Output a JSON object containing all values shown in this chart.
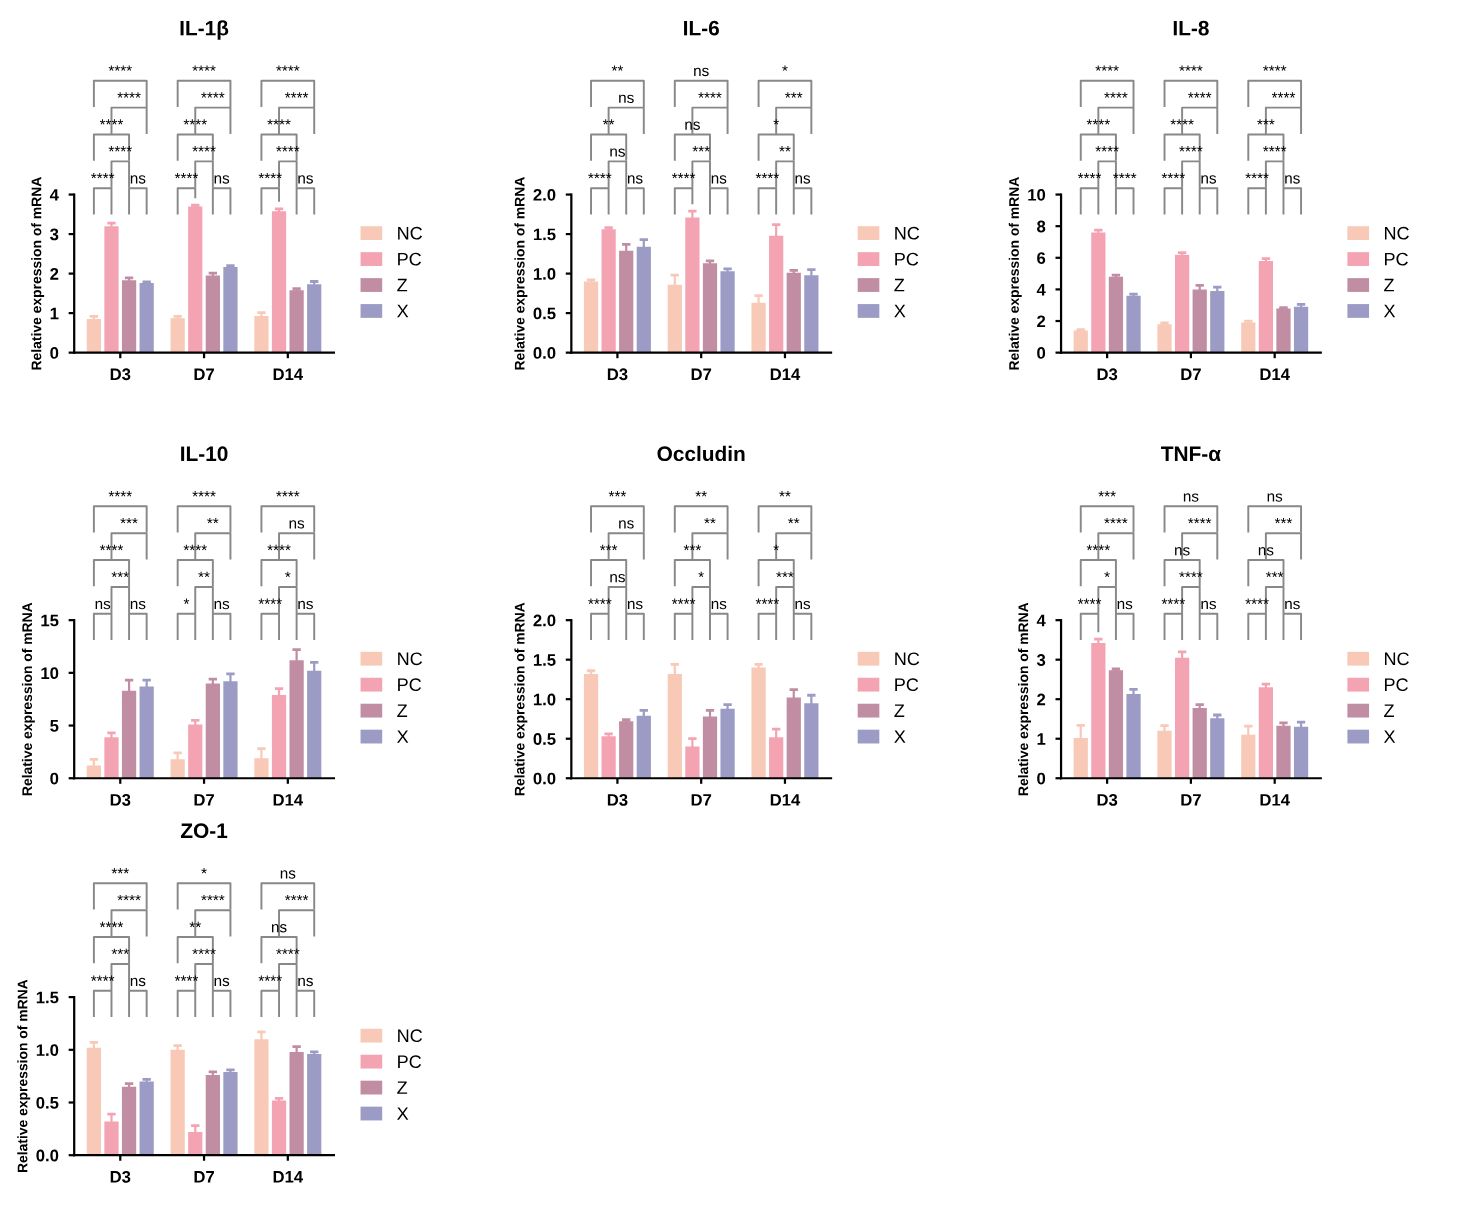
{
  "chart_data": [
    {
      "type": "bar",
      "title": "IL-1β",
      "ylabel": "Relative expression of mRNA",
      "categories": [
        "D3",
        "D7",
        "D14"
      ],
      "ylim": [
        0,
        4
      ],
      "yticks": [
        0,
        1,
        2,
        3,
        4
      ],
      "legend": "right",
      "series": [
        {
          "name": "NC",
          "color": "#f7c9b6",
          "values": [
            0.85,
            0.87,
            0.93
          ],
          "errors": [
            0.07,
            0.05,
            0.08
          ]
        },
        {
          "name": "PC",
          "color": "#f4a3b3",
          "values": [
            3.2,
            3.7,
            3.58
          ],
          "errors": [
            0.08,
            0.03,
            0.06
          ]
        },
        {
          "name": "Z",
          "color": "#c08da3",
          "values": [
            1.83,
            1.95,
            1.58
          ],
          "errors": [
            0.06,
            0.06,
            0.04
          ]
        },
        {
          "name": "X",
          "color": "#9c9bc5",
          "values": [
            1.76,
            2.17,
            1.73
          ],
          "errors": [
            0.03,
            0.03,
            0.07
          ]
        }
      ],
      "annotations": [
        "****",
        "ns",
        "****",
        "****",
        "****",
        "****",
        "****",
        "ns",
        "****",
        "****",
        "****",
        "****",
        "****",
        "ns",
        "****",
        "****",
        "****",
        "****"
      ]
    },
    {
      "type": "bar",
      "title": "IL-6",
      "ylabel": "Relative expression of mRNA",
      "categories": [
        "D3",
        "D7",
        "D14"
      ],
      "ylim": [
        0,
        2
      ],
      "yticks": [
        {
          "value": 0,
          "label": "0.0"
        },
        0.5,
        {
          "value": 1,
          "label": "1.0"
        },
        1.5,
        {
          "value": 2,
          "label": "2.0"
        }
      ],
      "legend": "right",
      "series": [
        {
          "name": "NC",
          "color": "#f7c9b6",
          "values": [
            0.9,
            0.86,
            0.63
          ],
          "errors": [
            0.02,
            0.12,
            0.09
          ]
        },
        {
          "name": "PC",
          "color": "#f4a3b3",
          "values": [
            1.56,
            1.71,
            1.48
          ],
          "errors": [
            0.02,
            0.08,
            0.14
          ]
        },
        {
          "name": "Z",
          "color": "#c08da3",
          "values": [
            1.29,
            1.13,
            1.01
          ],
          "errors": [
            0.08,
            0.03,
            0.03
          ]
        },
        {
          "name": "X",
          "color": "#9c9bc5",
          "values": [
            1.34,
            1.03,
            0.98
          ],
          "errors": [
            0.09,
            0.03,
            0.07
          ]
        }
      ],
      "annotations": [
        "****",
        "ns",
        "ns",
        "**",
        "ns",
        "**",
        "****",
        "ns",
        "***",
        "ns",
        "****",
        "ns",
        "****",
        "ns",
        "**",
        "*",
        "***",
        "*"
      ]
    },
    {
      "type": "bar",
      "title": "IL-8",
      "ylabel": "Relative expression of mRNA",
      "categories": [
        "D3",
        "D7",
        "D14"
      ],
      "ylim": [
        0,
        10
      ],
      "yticks": [
        0,
        2,
        4,
        6,
        8,
        10
      ],
      "legend": "right",
      "series": [
        {
          "name": "NC",
          "color": "#f7c9b6",
          "values": [
            1.4,
            1.8,
            1.9
          ],
          "errors": [
            0.05,
            0.08,
            0.1
          ]
        },
        {
          "name": "PC",
          "color": "#f4a3b3",
          "values": [
            7.6,
            6.2,
            5.8
          ],
          "errors": [
            0.15,
            0.12,
            0.15
          ]
        },
        {
          "name": "Z",
          "color": "#c08da3",
          "values": [
            4.8,
            4.0,
            2.8
          ],
          "errors": [
            0.1,
            0.25,
            0.05
          ]
        },
        {
          "name": "X",
          "color": "#9c9bc5",
          "values": [
            3.6,
            3.9,
            2.9
          ],
          "errors": [
            0.1,
            0.25,
            0.15
          ]
        }
      ],
      "annotations": [
        "****",
        "****",
        "****",
        "****",
        "****",
        "****",
        "****",
        "ns",
        "****",
        "****",
        "****",
        "****",
        "****",
        "ns",
        "****",
        "***",
        "****",
        "****"
      ]
    },
    {
      "type": "bar",
      "title": "IL-10",
      "ylabel": "Relative expression of mRNA",
      "categories": [
        "D3",
        "D7",
        "D14"
      ],
      "ylim": [
        0,
        15
      ],
      "yticks": [
        0,
        5,
        10,
        15
      ],
      "legend": "right",
      "series": [
        {
          "name": "NC",
          "color": "#f7c9b6",
          "values": [
            1.2,
            1.8,
            1.9
          ],
          "errors": [
            0.6,
            0.6,
            0.9
          ]
        },
        {
          "name": "PC",
          "color": "#f4a3b3",
          "values": [
            3.9,
            5.1,
            7.9
          ],
          "errors": [
            0.4,
            0.4,
            0.6
          ]
        },
        {
          "name": "Z",
          "color": "#c08da3",
          "values": [
            8.3,
            9.0,
            11.2
          ],
          "errors": [
            1.0,
            0.4,
            1.0
          ]
        },
        {
          "name": "X",
          "color": "#9c9bc5",
          "values": [
            8.7,
            9.2,
            10.2
          ],
          "errors": [
            0.6,
            0.7,
            0.8
          ]
        }
      ],
      "annotations": [
        "ns",
        "ns",
        "***",
        "****",
        "***",
        "****",
        "*",
        "ns",
        "**",
        "****",
        "**",
        "****",
        "****",
        "ns",
        "*",
        "****",
        "ns",
        "****"
      ]
    },
    {
      "type": "bar",
      "title": "Occludin",
      "ylabel": "Relative expression of mRNA",
      "categories": [
        "D3",
        "D7",
        "D14"
      ],
      "ylim": [
        0,
        2
      ],
      "yticks": [
        {
          "value": 0,
          "label": "0.0"
        },
        0.5,
        {
          "value": 1,
          "label": "1.0"
        },
        1.5,
        {
          "value": 2,
          "label": "2.0"
        }
      ],
      "legend": "right",
      "series": [
        {
          "name": "NC",
          "color": "#f7c9b6",
          "values": [
            1.32,
            1.32,
            1.4
          ],
          "errors": [
            0.04,
            0.12,
            0.04
          ]
        },
        {
          "name": "PC",
          "color": "#f4a3b3",
          "values": [
            0.53,
            0.4,
            0.52
          ],
          "errors": [
            0.03,
            0.1,
            0.1
          ]
        },
        {
          "name": "Z",
          "color": "#c08da3",
          "values": [
            0.72,
            0.78,
            1.02
          ],
          "errors": [
            0.02,
            0.08,
            0.1
          ]
        },
        {
          "name": "X",
          "color": "#9c9bc5",
          "values": [
            0.79,
            0.88,
            0.95
          ],
          "errors": [
            0.07,
            0.05,
            0.1
          ]
        }
      ],
      "annotations": [
        "****",
        "ns",
        "ns",
        "***",
        "ns",
        "***",
        "****",
        "ns",
        "*",
        "***",
        "**",
        "**",
        "****",
        "ns",
        "***",
        "*",
        "**",
        "**"
      ]
    },
    {
      "type": "bar",
      "title": "TNF-α",
      "ylabel": "Relative expression of mRNA",
      "categories": [
        "D3",
        "D7",
        "D14"
      ],
      "ylim": [
        0,
        4
      ],
      "yticks": [
        0,
        1,
        2,
        3,
        4
      ],
      "legend": "right",
      "series": [
        {
          "name": "NC",
          "color": "#f7c9b6",
          "values": [
            1.02,
            1.2,
            1.1
          ],
          "errors": [
            0.32,
            0.13,
            0.22
          ]
        },
        {
          "name": "PC",
          "color": "#f4a3b3",
          "values": [
            3.42,
            3.05,
            2.3
          ],
          "errors": [
            0.1,
            0.15,
            0.08
          ]
        },
        {
          "name": "Z",
          "color": "#c08da3",
          "values": [
            2.73,
            1.78,
            1.33
          ],
          "errors": [
            0.04,
            0.08,
            0.07
          ]
        },
        {
          "name": "X",
          "color": "#9c9bc5",
          "values": [
            2.13,
            1.52,
            1.3
          ],
          "errors": [
            0.12,
            0.08,
            0.12
          ]
        }
      ],
      "annotations": [
        "****",
        "ns",
        "*",
        "****",
        "****",
        "***",
        "****",
        "ns",
        "****",
        "ns",
        "****",
        "ns",
        "****",
        "ns",
        "***",
        "ns",
        "***",
        "ns"
      ]
    },
    {
      "type": "bar",
      "title": "ZO-1",
      "ylabel": "Relative expression of mRNA",
      "categories": [
        "D3",
        "D7",
        "D14"
      ],
      "ylim": [
        0,
        1.5
      ],
      "yticks": [
        {
          "value": 0,
          "label": "0.0"
        },
        0.5,
        {
          "value": 1,
          "label": "1.0"
        },
        1.5
      ],
      "legend": "right",
      "series": [
        {
          "name": "NC",
          "color": "#f7c9b6",
          "values": [
            1.02,
            1.0,
            1.1
          ],
          "errors": [
            0.05,
            0.04,
            0.07
          ]
        },
        {
          "name": "PC",
          "color": "#f4a3b3",
          "values": [
            0.32,
            0.22,
            0.52
          ],
          "errors": [
            0.07,
            0.06,
            0.02
          ]
        },
        {
          "name": "Z",
          "color": "#c08da3",
          "values": [
            0.65,
            0.76,
            0.98
          ],
          "errors": [
            0.03,
            0.03,
            0.05
          ]
        },
        {
          "name": "X",
          "color": "#9c9bc5",
          "values": [
            0.7,
            0.79,
            0.96
          ],
          "errors": [
            0.02,
            0.02,
            0.02
          ]
        }
      ],
      "annotations": [
        "****",
        "ns",
        "***",
        "****",
        "****",
        "***",
        "****",
        "ns",
        "****",
        "**",
        "****",
        "*",
        "****",
        "ns",
        "****",
        "ns",
        "****",
        "ns"
      ]
    }
  ]
}
